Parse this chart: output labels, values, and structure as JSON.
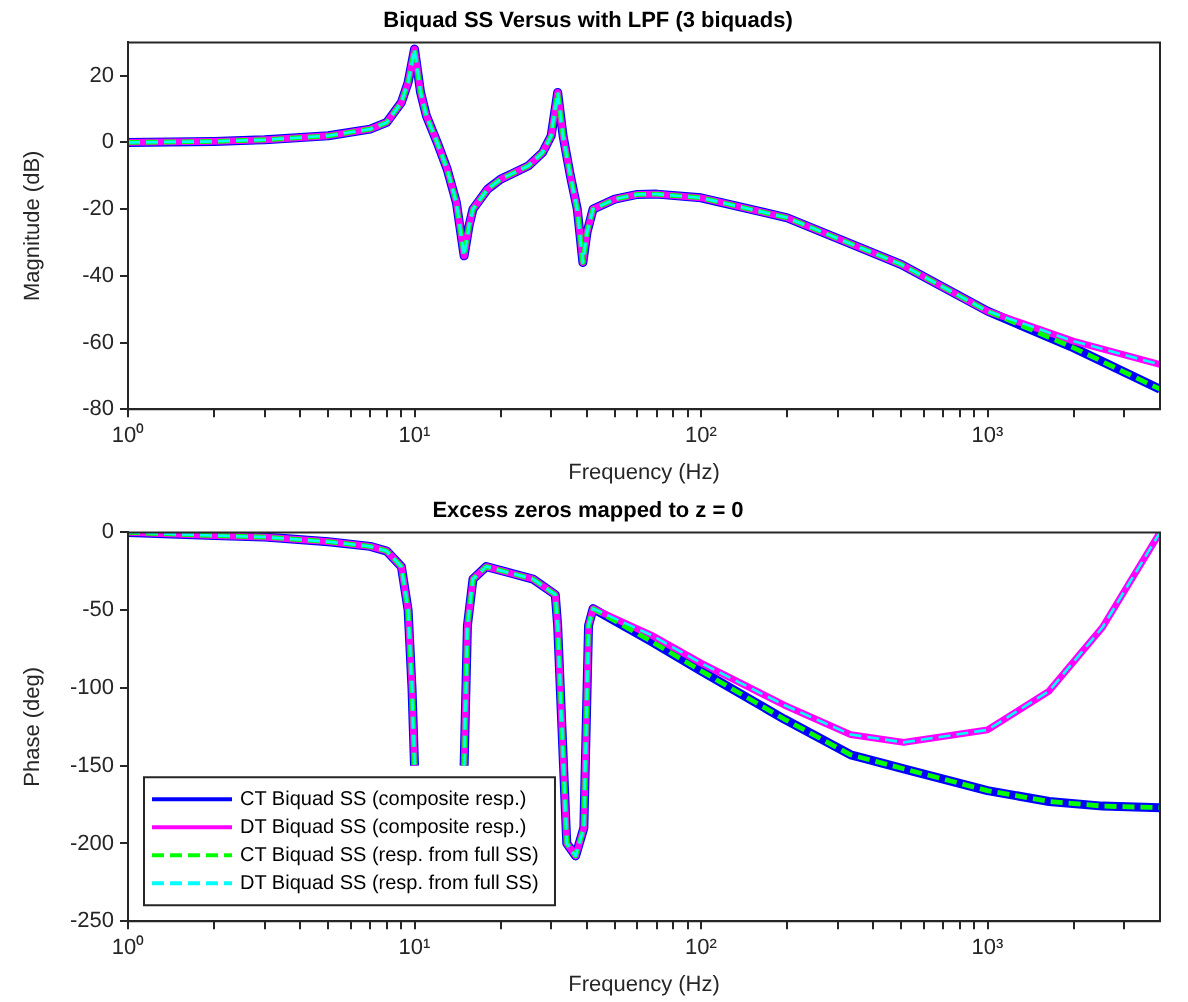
{
  "chart_data": [
    {
      "type": "line",
      "title": "Biquad SS Versus with LPF (3 biquads)",
      "xlabel": "Frequency (Hz)",
      "ylabel": "Magnitude (dB)",
      "log": "x",
      "grid": false,
      "legend": false,
      "x": [
        1,
        2,
        3,
        5,
        7,
        8,
        9,
        9.5,
        10,
        10.5,
        11,
        12,
        13,
        14,
        14.9,
        15.5,
        16,
        18,
        20,
        25,
        28,
        30,
        31.6,
        33,
        35,
        37,
        38.7,
        40,
        42,
        50,
        60,
        70,
        100,
        200,
        500,
        1000,
        2000,
        4000
      ],
      "xlim": [
        1,
        4000
      ],
      "xticks": [
        {
          "value": 1,
          "label": "10⁰"
        },
        {
          "value": 2,
          "label": null
        },
        {
          "value": 3,
          "label": null
        },
        {
          "value": 4,
          "label": null
        },
        {
          "value": 5,
          "label": null
        },
        {
          "value": 6,
          "label": null
        },
        {
          "value": 7,
          "label": null
        },
        {
          "value": 8,
          "label": null
        },
        {
          "value": 9,
          "label": null
        },
        {
          "value": 10,
          "label": "10¹"
        },
        {
          "value": 20,
          "label": null
        },
        {
          "value": 30,
          "label": null
        },
        {
          "value": 40,
          "label": null
        },
        {
          "value": 50,
          "label": null
        },
        {
          "value": 60,
          "label": null
        },
        {
          "value": 70,
          "label": null
        },
        {
          "value": 80,
          "label": null
        },
        {
          "value": 90,
          "label": null
        },
        {
          "value": 100,
          "label": "10²"
        },
        {
          "value": 200,
          "label": null
        },
        {
          "value": 300,
          "label": null
        },
        {
          "value": 400,
          "label": null
        },
        {
          "value": 500,
          "label": null
        },
        {
          "value": 600,
          "label": null
        },
        {
          "value": 700,
          "label": null
        },
        {
          "value": 800,
          "label": null
        },
        {
          "value": 900,
          "label": null
        },
        {
          "value": 1000,
          "label": "10³"
        },
        {
          "value": 2000,
          "label": null
        },
        {
          "value": 3000,
          "label": null
        }
      ],
      "ylim": [
        -80,
        30
      ],
      "yticks": [
        -80,
        -60,
        -40,
        -20,
        0,
        20
      ],
      "series": [
        {
          "color": "#0000ff",
          "line_style": "solid",
          "values": [
            0,
            0.3,
            0.8,
            2,
            4,
            6,
            12,
            18,
            28,
            15,
            8,
            0,
            -8,
            -18,
            -34,
            -25,
            -20,
            -14,
            -11,
            -7,
            -3,
            2,
            15,
            2,
            -10,
            -20,
            -36,
            -27,
            -20,
            -17,
            -15.6,
            -15.5,
            -16.6,
            -22.6,
            -36.6,
            -50.6,
            -61.6,
            -74
          ]
        },
        {
          "color": "#ff00ff",
          "line_style": "solid",
          "values": [
            0,
            0.3,
            0.8,
            2,
            4,
            6,
            12,
            18,
            28,
            15,
            8,
            0,
            -8,
            -18,
            -34,
            -25,
            -20,
            -14,
            -11,
            -7,
            -3,
            2,
            15,
            2,
            -10,
            -20,
            -36,
            -27,
            -20,
            -17,
            -15.6,
            -15.5,
            -16.6,
            -22.6,
            -36.6,
            -50.6,
            -59.6,
            -66.6
          ]
        },
        {
          "color": "#00ff00",
          "line_style": "dashed",
          "values": [
            0,
            0.3,
            0.8,
            2,
            4,
            6,
            12,
            18,
            28,
            15,
            8,
            0,
            -8,
            -18,
            -34,
            -25,
            -20,
            -14,
            -11,
            -7,
            -3,
            2,
            15,
            2,
            -10,
            -20,
            -36,
            -27,
            -20,
            -17,
            -15.6,
            -15.5,
            -16.6,
            -22.6,
            -36.6,
            -50.6,
            -61.6,
            -74
          ]
        },
        {
          "color": "#00ffff",
          "line_style": "dashed",
          "values": [
            0,
            0.3,
            0.8,
            2,
            4,
            6,
            12,
            18,
            28,
            15,
            8,
            0,
            -8,
            -18,
            -34,
            -25,
            -20,
            -14,
            -11,
            -7,
            -3,
            2,
            15,
            2,
            -10,
            -20,
            -36,
            -27,
            -20,
            -17,
            -15.6,
            -15.5,
            -16.6,
            -22.6,
            -36.6,
            -50.6,
            -59.6,
            -66.6
          ]
        }
      ]
    },
    {
      "type": "line",
      "title": "Excess zeros mapped to z = 0",
      "xlabel": "Frequency (Hz)",
      "ylabel": "Phase (deg)",
      "log": "x",
      "grid": false,
      "legend": "bottom left",
      "x": [
        1,
        2,
        3,
        5,
        7,
        8,
        9,
        9.5,
        9.8,
        10,
        12,
        14.9,
        15.3,
        16,
        17.8,
        25.9,
        31,
        31.6,
        34,
        36.5,
        39,
        40.5,
        42,
        67,
        100,
        195,
        333,
        510,
        1000,
        1640,
        2520,
        4000
      ],
      "xlim": [
        1,
        4000
      ],
      "xticks": [
        {
          "value": 1,
          "label": "10⁰"
        },
        {
          "value": 2,
          "label": null
        },
        {
          "value": 3,
          "label": null
        },
        {
          "value": 4,
          "label": null
        },
        {
          "value": 5,
          "label": null
        },
        {
          "value": 6,
          "label": null
        },
        {
          "value": 7,
          "label": null
        },
        {
          "value": 8,
          "label": null
        },
        {
          "value": 9,
          "label": null
        },
        {
          "value": 10,
          "label": "10¹"
        },
        {
          "value": 20,
          "label": null
        },
        {
          "value": 30,
          "label": null
        },
        {
          "value": 40,
          "label": null
        },
        {
          "value": 50,
          "label": null
        },
        {
          "value": 60,
          "label": null
        },
        {
          "value": 70,
          "label": null
        },
        {
          "value": 80,
          "label": null
        },
        {
          "value": 90,
          "label": null
        },
        {
          "value": 100,
          "label": "10²"
        },
        {
          "value": 200,
          "label": null
        },
        {
          "value": 300,
          "label": null
        },
        {
          "value": 400,
          "label": null
        },
        {
          "value": 500,
          "label": null
        },
        {
          "value": 600,
          "label": null
        },
        {
          "value": 700,
          "label": null
        },
        {
          "value": 800,
          "label": null
        },
        {
          "value": 900,
          "label": null
        },
        {
          "value": 1000,
          "label": "10³"
        },
        {
          "value": 2000,
          "label": null
        },
        {
          "value": 3000,
          "label": null
        }
      ],
      "ylim": [
        -250,
        0
      ],
      "yticks": [
        -250,
        -200,
        -150,
        -100,
        -50,
        0
      ],
      "series": [
        {
          "name": "CT Biquad SS (composite resp.)",
          "color": "#0000ff",
          "line_style": "solid",
          "values": [
            0,
            -2,
            -3,
            -6,
            -9,
            -12,
            -22,
            -50,
            -100,
            -150,
            null,
            -150,
            -60,
            -30,
            -22,
            -30,
            -40,
            -60,
            -200,
            -208,
            -190,
            -60,
            -49,
            -70,
            -89,
            -120,
            -143,
            -152,
            -166,
            -173,
            -176,
            -177
          ]
        },
        {
          "name": "DT Biquad SS (composite resp.)",
          "color": "#ff00ff",
          "line_style": "solid",
          "values": [
            0,
            -2,
            -3,
            -6,
            -9,
            -12,
            -22,
            -50,
            -100,
            -150,
            null,
            -150,
            -60,
            -30,
            -22,
            -30,
            -40,
            -60,
            -200,
            -208,
            -190,
            -60,
            -49,
            -66,
            -84,
            -111,
            -130,
            -135,
            -127,
            -102,
            -61,
            0
          ]
        },
        {
          "name": "CT Biquad SS (resp. from full SS)",
          "color": "#00ff00",
          "line_style": "dashed",
          "values": [
            0,
            -2,
            -3,
            -6,
            -9,
            -12,
            -22,
            -50,
            -100,
            -150,
            null,
            -150,
            -60,
            -30,
            -22,
            -30,
            -40,
            -60,
            -200,
            -208,
            -190,
            -60,
            -49,
            -70,
            -89,
            -120,
            -143,
            -152,
            -166,
            -173,
            -176,
            -177
          ]
        },
        {
          "name": "DT Biquad SS (resp. from full SS)",
          "color": "#00ffff",
          "line_style": "dashed",
          "values": [
            0,
            -2,
            -3,
            -6,
            -9,
            -12,
            -22,
            -50,
            -100,
            -150,
            null,
            -150,
            -60,
            -30,
            -22,
            -30,
            -40,
            -60,
            -200,
            -208,
            -190,
            -60,
            -49,
            -66,
            -84,
            -111,
            -130,
            -135,
            -127,
            -102,
            -61,
            0
          ]
        }
      ]
    }
  ]
}
